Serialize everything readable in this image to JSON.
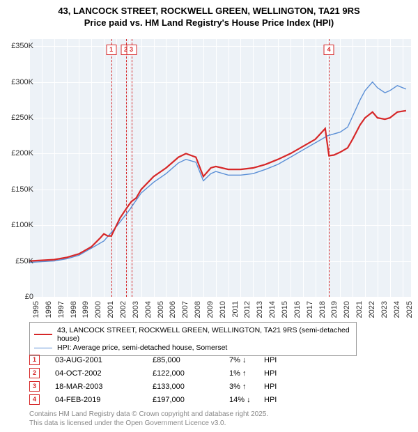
{
  "title_line1": "43, LANCOCK STREET, ROCKWELL GREEN, WELLINGTON, TA21 9RS",
  "title_line2": "Price paid vs. HM Land Registry's House Price Index (HPI)",
  "chart": {
    "bg_color": "#edf2f7",
    "grid_color": "#ffffff",
    "x_min": 1995,
    "x_max": 2025.7,
    "y_min": 0,
    "y_max": 360000,
    "y_ticks": [
      0,
      50000,
      100000,
      150000,
      200000,
      250000,
      300000,
      350000
    ],
    "y_tick_labels": [
      "£0",
      "£50K",
      "£100K",
      "£150K",
      "£200K",
      "£250K",
      "£300K",
      "£350K"
    ],
    "x_ticks": [
      1995,
      1996,
      1997,
      1998,
      1999,
      2000,
      2001,
      2002,
      2003,
      2004,
      2005,
      2006,
      2007,
      2008,
      2009,
      2010,
      2011,
      2012,
      2013,
      2014,
      2015,
      2016,
      2017,
      2018,
      2019,
      2020,
      2021,
      2022,
      2023,
      2024,
      2025
    ],
    "red": {
      "color": "#d62728",
      "width": 2.2,
      "points": [
        [
          1995,
          50000
        ],
        [
          1996,
          51000
        ],
        [
          1997,
          52000
        ],
        [
          1998,
          55000
        ],
        [
          1999,
          60000
        ],
        [
          2000,
          70000
        ],
        [
          2000.7,
          82000
        ],
        [
          2001.0,
          88000
        ],
        [
          2001.3,
          85000
        ],
        [
          2001.6,
          85000
        ],
        [
          2002.3,
          110000
        ],
        [
          2002.76,
          122000
        ],
        [
          2003.0,
          128000
        ],
        [
          2003.21,
          133000
        ],
        [
          2003.6,
          138000
        ],
        [
          2004,
          150000
        ],
        [
          2005,
          168000
        ],
        [
          2006,
          180000
        ],
        [
          2007,
          195000
        ],
        [
          2007.6,
          200000
        ],
        [
          2008.4,
          195000
        ],
        [
          2009,
          168000
        ],
        [
          2009.6,
          180000
        ],
        [
          2010,
          182000
        ],
        [
          2011,
          178000
        ],
        [
          2012,
          178000
        ],
        [
          2013,
          180000
        ],
        [
          2014,
          185000
        ],
        [
          2015,
          192000
        ],
        [
          2016,
          200000
        ],
        [
          2017,
          210000
        ],
        [
          2018,
          220000
        ],
        [
          2018.8,
          235000
        ],
        [
          2019.1,
          197000
        ],
        [
          2019.5,
          198000
        ],
        [
          2020,
          202000
        ],
        [
          2020.6,
          208000
        ],
        [
          2021,
          220000
        ],
        [
          2021.6,
          240000
        ],
        [
          2022,
          250000
        ],
        [
          2022.6,
          258000
        ],
        [
          2023,
          250000
        ],
        [
          2023.6,
          248000
        ],
        [
          2024,
          250000
        ],
        [
          2024.6,
          258000
        ],
        [
          2025.3,
          260000
        ]
      ]
    },
    "blue": {
      "color": "#5b8fd6",
      "width": 1.4,
      "points": [
        [
          1995,
          48000
        ],
        [
          1996,
          49000
        ],
        [
          1997,
          50000
        ],
        [
          1998,
          53000
        ],
        [
          1999,
          58000
        ],
        [
          2000,
          68000
        ],
        [
          2001,
          78000
        ],
        [
          2002,
          98000
        ],
        [
          2003,
          120000
        ],
        [
          2004,
          145000
        ],
        [
          2005,
          160000
        ],
        [
          2006,
          172000
        ],
        [
          2007,
          187000
        ],
        [
          2007.6,
          192000
        ],
        [
          2008.4,
          188000
        ],
        [
          2009,
          162000
        ],
        [
          2009.6,
          172000
        ],
        [
          2010,
          175000
        ],
        [
          2011,
          170000
        ],
        [
          2012,
          170000
        ],
        [
          2013,
          172000
        ],
        [
          2014,
          178000
        ],
        [
          2015,
          185000
        ],
        [
          2016,
          195000
        ],
        [
          2017,
          205000
        ],
        [
          2018,
          215000
        ],
        [
          2019,
          225000
        ],
        [
          2020,
          230000
        ],
        [
          2020.6,
          237000
        ],
        [
          2021,
          252000
        ],
        [
          2021.6,
          275000
        ],
        [
          2022,
          288000
        ],
        [
          2022.6,
          300000
        ],
        [
          2023,
          292000
        ],
        [
          2023.6,
          285000
        ],
        [
          2024,
          288000
        ],
        [
          2024.6,
          295000
        ],
        [
          2025.3,
          290000
        ]
      ]
    },
    "markers": [
      {
        "n": "1",
        "year": 2001.59
      },
      {
        "n": "2",
        "year": 2002.76
      },
      {
        "n": "3",
        "year": 2003.21
      },
      {
        "n": "4",
        "year": 2019.1
      }
    ]
  },
  "legend": {
    "red_label": "43, LANCOCK STREET, ROCKWELL GREEN, WELLINGTON, TA21 9RS (semi-detached house)",
    "blue_label": "HPI: Average price, semi-detached house, Somerset"
  },
  "events": [
    {
      "n": "1",
      "date": "03-AUG-2001",
      "price": "£85,000",
      "pct": "7%",
      "arrow": "↓",
      "rel": "HPI"
    },
    {
      "n": "2",
      "date": "04-OCT-2002",
      "price": "£122,000",
      "pct": "1%",
      "arrow": "↑",
      "rel": "HPI"
    },
    {
      "n": "3",
      "date": "18-MAR-2003",
      "price": "£133,000",
      "pct": "3%",
      "arrow": "↑",
      "rel": "HPI"
    },
    {
      "n": "4",
      "date": "04-FEB-2019",
      "price": "£197,000",
      "pct": "14%",
      "arrow": "↓",
      "rel": "HPI"
    }
  ],
  "footer_line1": "Contains HM Land Registry data © Crown copyright and database right 2025.",
  "footer_line2": "This data is licensed under the Open Government Licence v3.0."
}
